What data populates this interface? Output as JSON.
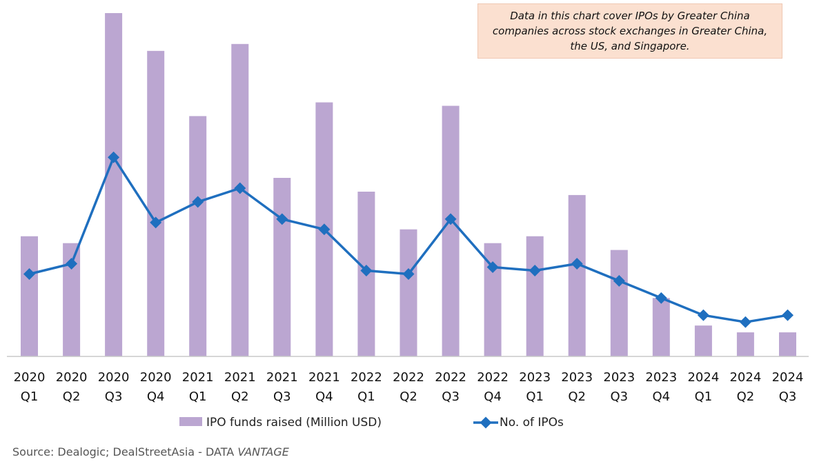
{
  "chart_data": {
    "type": "bar+line",
    "categories": [
      [
        "2020",
        "Q1"
      ],
      [
        "2020",
        "Q2"
      ],
      [
        "2020",
        "Q3"
      ],
      [
        "2020",
        "Q4"
      ],
      [
        "2021",
        "Q1"
      ],
      [
        "2021",
        "Q2"
      ],
      [
        "2021",
        "Q3"
      ],
      [
        "2021",
        "Q4"
      ],
      [
        "2022",
        "Q1"
      ],
      [
        "2022",
        "Q2"
      ],
      [
        "2022",
        "Q3"
      ],
      [
        "2022",
        "Q4"
      ],
      [
        "2023",
        "Q1"
      ],
      [
        "2023",
        "Q2"
      ],
      [
        "2023",
        "Q3"
      ],
      [
        "2023",
        "Q4"
      ],
      [
        "2024",
        "Q1"
      ],
      [
        "2024",
        "Q2"
      ],
      [
        "2024",
        "Q3"
      ]
    ],
    "bar_series": {
      "name": "IPO funds raised (Million USD)",
      "color": "#bba6d1",
      "values": [
        35,
        33,
        100,
        89,
        70,
        91,
        52,
        74,
        48,
        37,
        73,
        33,
        35,
        47,
        31,
        17,
        9,
        7,
        7
      ]
    },
    "line_series": {
      "name": "No. of IPOs",
      "color": "#1f6fbf",
      "values": [
        24,
        27,
        58,
        39,
        45,
        49,
        40,
        37,
        25,
        24,
        40,
        26,
        25,
        27,
        22,
        17,
        12,
        10,
        12
      ]
    },
    "bar_ylim": [
      0,
      100
    ],
    "line_ylim": [
      0,
      100
    ],
    "grid": false,
    "legend_position": "bottom"
  },
  "note": {
    "line1": "Data in this chart cover IPOs by Greater China",
    "line2": "companies across stock exchanges in Greater China,",
    "line3": "the US, and Singapore."
  },
  "source": {
    "prefix": "Source: Dealogic; DealStreetAsia - DATA ",
    "emphasis": "VANTAGE"
  }
}
